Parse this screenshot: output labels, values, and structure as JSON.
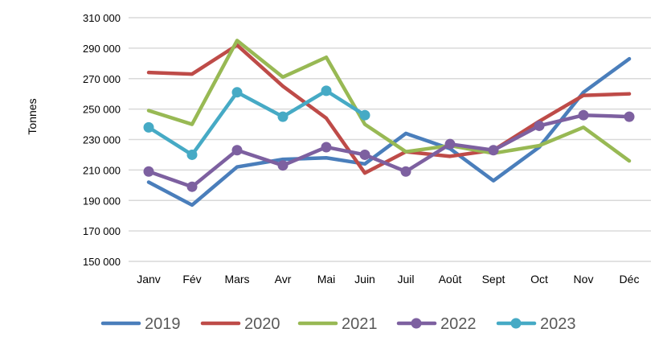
{
  "chart_data": {
    "type": "line",
    "title": "",
    "xlabel": "",
    "ylabel": "Tonnes",
    "ylim": [
      150000,
      310000
    ],
    "yticks": [
      "150 000",
      "170 000",
      "190 000",
      "210 000",
      "230 000",
      "250 000",
      "270 000",
      "290 000",
      "310 000"
    ],
    "ytick_values": [
      150000,
      170000,
      190000,
      210000,
      230000,
      250000,
      270000,
      290000,
      310000
    ],
    "grid": true,
    "legend": "bottom",
    "categories": [
      "Janv",
      "Fév",
      "Mars",
      "Avr",
      "Mai",
      "Juin",
      "Juil",
      "Août",
      "Sept",
      "Oct",
      "Nov",
      "Déc"
    ],
    "series": [
      {
        "name": "2019",
        "color": "#4a7ebb",
        "markers": false,
        "values": [
          202000,
          187000,
          212000,
          217000,
          218000,
          214000,
          234000,
          224000,
          203000,
          225000,
          261000,
          283000
        ]
      },
      {
        "name": "2020",
        "color": "#be4b48",
        "markers": false,
        "values": [
          274000,
          273000,
          292000,
          265000,
          244000,
          208000,
          222000,
          219000,
          223000,
          242000,
          259000,
          260000
        ]
      },
      {
        "name": "2021",
        "color": "#98b954",
        "markers": false,
        "values": [
          249000,
          240000,
          295000,
          271000,
          284000,
          240000,
          222000,
          226000,
          221000,
          226000,
          238000,
          216000
        ]
      },
      {
        "name": "2022",
        "color": "#7d60a0",
        "markers": true,
        "values": [
          209000,
          199000,
          223000,
          213000,
          225000,
          220000,
          209000,
          227000,
          223000,
          239000,
          246000,
          245000
        ]
      },
      {
        "name": "2023",
        "color": "#46aac5",
        "markers": true,
        "values": [
          238000,
          220000,
          261000,
          245000,
          262000,
          246000,
          null,
          null,
          null,
          null,
          null,
          null
        ]
      }
    ]
  }
}
